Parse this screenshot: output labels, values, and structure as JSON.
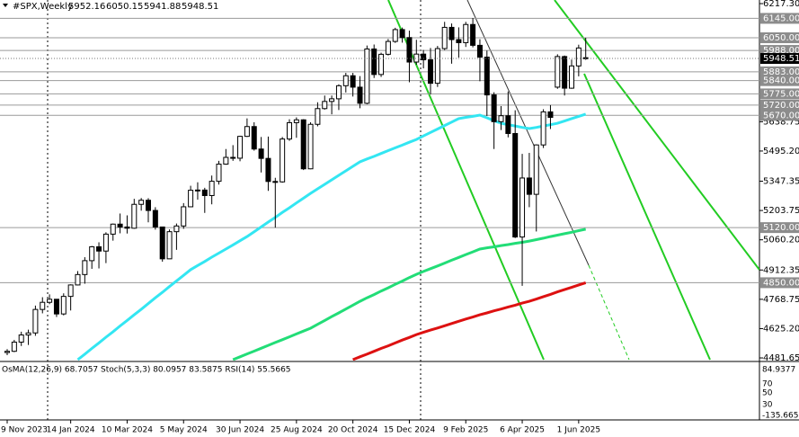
{
  "chart_data": {
    "type": "candlestick",
    "title": "#SPX,Weekly",
    "categories": [
      "9 Nov 2023",
      null,
      null,
      null,
      null,
      null,
      null,
      null,
      null,
      "14 Jan 2024",
      null,
      null,
      null,
      null,
      null,
      null,
      null,
      "10 Mar 2024",
      null,
      null,
      null,
      null,
      null,
      null,
      null,
      "5 May 2024",
      null,
      null,
      null,
      null,
      null,
      null,
      null,
      "30 Jun 2024",
      null,
      null,
      null,
      null,
      null,
      null,
      null,
      "25 Aug 2024",
      null,
      null,
      null,
      null,
      null,
      null,
      null,
      "20 Oct 2024",
      null,
      null,
      null,
      null,
      null,
      null,
      null,
      "15 Dec 2024",
      null,
      null,
      null,
      null,
      null,
      null,
      null,
      "9 Feb 2025",
      null,
      null,
      null,
      null,
      null,
      null,
      null,
      "6 Apr 2025",
      null,
      null,
      null,
      null,
      null,
      null,
      null,
      "1 Jun 2025",
      null
    ],
    "open": [
      4508,
      4514,
      4559,
      4594,
      4604,
      4719,
      4754,
      4769,
      4697,
      4783,
      4839,
      4890,
      4958,
      5026,
      5005,
      5088,
      5137,
      5123,
      5117,
      5234,
      5254,
      5204,
      5123,
      4967,
      5100,
      5128,
      5222,
      5303,
      5304,
      5277,
      5347,
      5431,
      5464,
      5460,
      5567,
      5615,
      5505,
      5459,
      5346,
      5344,
      5554,
      5634,
      5648,
      5408,
      5626,
      5703,
      5738,
      5751,
      5815,
      5864,
      5808,
      5729,
      5995,
      5870,
      5969,
      6032,
      6090,
      6051,
      5931,
      5970,
      5942,
      5827,
      5997,
      6101,
      6041,
      6026,
      6115,
      6013,
      5955,
      5770,
      5639,
      5668,
      5581,
      5074,
      5363,
      5283,
      5525,
      5687,
      5808,
      5958,
      5803,
      5912,
      5952.16
    ],
    "high": [
      4525,
      4570,
      4610,
      4620,
      4738,
      4779,
      4793,
      4770,
      4798,
      4842,
      4907,
      4975,
      5030,
      5048,
      5097,
      5140,
      5189,
      5180,
      5261,
      5265,
      5264,
      5220,
      5125,
      5111,
      5140,
      5240,
      5325,
      5342,
      5315,
      5375,
      5447,
      5505,
      5524,
      5570,
      5655,
      5636,
      5564,
      5566,
      5364,
      5564,
      5651,
      5660,
      5651,
      5636,
      5734,
      5767,
      5767,
      5822,
      5878,
      5878,
      5862,
      6012,
      6017,
      5977,
      6044,
      6099,
      6100,
      6085,
      6040,
      5990,
      6000,
      6010,
      6128,
      6120,
      6101,
      6128,
      6147,
      6043,
      5987,
      5783,
      5715,
      5787,
      5695,
      5481,
      5486,
      5528,
      5700,
      5720,
      5969,
      5963,
      5943,
      6016,
      6050.15
    ],
    "low": [
      4495,
      4510,
      4540,
      4545,
      4590,
      4700,
      4745,
      4682,
      4690,
      4714,
      4837,
      4845,
      4918,
      4920,
      4946,
      5056,
      5092,
      5091,
      5114,
      5203,
      5146,
      5110,
      4953,
      4968,
      5011,
      5114,
      5220,
      5257,
      5192,
      5234,
      5331,
      5428,
      5447,
      5445,
      5564,
      5497,
      5390,
      5300,
      5120,
      5340,
      5545,
      5560,
      5402,
      5406,
      5616,
      5698,
      5675,
      5696,
      5782,
      5762,
      5705,
      5724,
      5853,
      5858,
      5963,
      6025,
      6026,
      5832,
      5918,
      5900,
      5773,
      5809,
      5990,
      5923,
      5953,
      6005,
      6003,
      5837,
      5667,
      5505,
      5598,
      5562,
      5069,
      4835,
      5220,
      5101,
      5510,
      5603,
      5800,
      5767,
      5800,
      5861,
      5941.88
    ],
    "close": [
      4514,
      4559,
      4594,
      4604,
      4719,
      4754,
      4769,
      4697,
      4783,
      4839,
      4890,
      4958,
      5026,
      5005,
      5088,
      5137,
      5123,
      5117,
      5234,
      5254,
      5204,
      5123,
      4967,
      5100,
      5128,
      5222,
      5303,
      5304,
      5277,
      5347,
      5431,
      5464,
      5460,
      5567,
      5615,
      5505,
      5459,
      5346,
      5344,
      5554,
      5634,
      5648,
      5408,
      5626,
      5703,
      5738,
      5751,
      5815,
      5864,
      5808,
      5729,
      5995,
      5870,
      5969,
      6032,
      6090,
      6051,
      5931,
      5970,
      5942,
      5827,
      5997,
      6101,
      6041,
      6026,
      6115,
      6013,
      5955,
      5770,
      5639,
      5668,
      5581,
      5074,
      5363,
      5283,
      5525,
      5687,
      5660,
      5958,
      5803,
      5912,
      6000,
      5948.51
    ],
    "moving_averages": [
      {
        "color": "#33e6f2",
        "values": [
          null,
          null,
          null,
          null,
          null,
          null,
          null,
          null,
          null,
          null,
          4473,
          4500,
          4528,
          4555,
          4583,
          4610,
          4638,
          4665,
          4693,
          4720,
          4748,
          4776,
          4803,
          4831,
          4859,
          4886,
          4914,
          4934,
          4954,
          4975,
          4995,
          5015,
          5035,
          5056,
          5076,
          5100,
          5123,
          5147,
          5170,
          5194,
          5217,
          5241,
          5264,
          5288,
          5310,
          5332,
          5354,
          5376,
          5398,
          5420,
          5442,
          5456,
          5469,
          5483,
          5497,
          5511,
          5524,
          5538,
          5552,
          5569,
          5586,
          5603,
          5620,
          5637,
          5654,
          5660,
          5665,
          5671,
          5658,
          5644,
          5631,
          5624,
          5618,
          5611,
          5605,
          5611,
          5618,
          5624,
          5631,
          5642,
          5654,
          5665,
          5676
        ]
      },
      {
        "color": "#22dd77",
        "values": [
          null,
          null,
          null,
          null,
          null,
          null,
          null,
          null,
          null,
          null,
          null,
          null,
          null,
          null,
          null,
          null,
          null,
          null,
          null,
          null,
          null,
          null,
          null,
          null,
          null,
          null,
          null,
          null,
          null,
          null,
          null,
          null,
          4473,
          4487,
          4501,
          4515,
          4529,
          4543,
          4557,
          4571,
          4585,
          4599,
          4613,
          4627,
          4646,
          4665,
          4684,
          4702,
          4721,
          4740,
          4759,
          4776,
          4792,
          4809,
          4825,
          4842,
          4858,
          4875,
          4891,
          4905,
          4919,
          4932,
          4946,
          4960,
          4974,
          4988,
          5001,
          5015,
          5021,
          5026,
          5032,
          5037,
          5043,
          5048,
          5054,
          5061,
          5068,
          5076,
          5083,
          5090,
          5097,
          5105,
          5112
        ]
      },
      {
        "color": "#dd1111",
        "values": [
          null,
          null,
          null,
          null,
          null,
          null,
          null,
          null,
          null,
          null,
          null,
          null,
          null,
          null,
          null,
          null,
          null,
          null,
          null,
          null,
          null,
          null,
          null,
          null,
          null,
          null,
          null,
          null,
          null,
          null,
          null,
          null,
          null,
          null,
          null,
          null,
          null,
          null,
          null,
          null,
          null,
          null,
          null,
          null,
          null,
          null,
          null,
          null,
          null,
          4473,
          4487,
          4500,
          4514,
          4528,
          4541,
          4555,
          4569,
          4582,
          4596,
          4607,
          4618,
          4628,
          4639,
          4650,
          4661,
          4672,
          4682,
          4693,
          4702,
          4712,
          4721,
          4731,
          4740,
          4750,
          4759,
          4770,
          4782,
          4793,
          4805,
          4816,
          4827,
          4839,
          4850
        ]
      }
    ],
    "ylim": [
      4473,
      6235
    ],
    "yticks": [
      {
        "value": 6217.3,
        "label": "6217.30"
      },
      5638.75,
      {
        "value": 5495.2,
        "label": "5495.20"
      },
      5347.35,
      5203.75,
      {
        "value": 5060.2,
        "label": "5060.20"
      },
      4912.35,
      4768.75,
      {
        "value": 4625.2,
        "label": "4625.20"
      },
      4481.65
    ],
    "levels": [
      {
        "value": 6145,
        "label": "6145.00"
      },
      {
        "value": 6050,
        "label": "6050.00"
      },
      {
        "value": 5988,
        "label": "5988.00"
      },
      {
        "value": 5883,
        "label": "5883.00"
      },
      {
        "value": 5840,
        "label": "5840.00"
      },
      {
        "value": 5775,
        "label": "5775.00"
      },
      {
        "value": 5720,
        "label": "5720.00"
      },
      {
        "value": 5670,
        "label": "5670.00"
      },
      {
        "value": 5120,
        "label": "5120.00"
      },
      {
        "value": 4850,
        "label": "4850.00"
      }
    ],
    "bull_color": "#ffffff",
    "bear_color": "#000000"
  },
  "indicator_panel": {
    "label": "OsMA(12,26,9) 68.7057  Stoch(5,3,3) 80.0957 83.5875  RSI(14) 55.5665",
    "scale_labels": [
      84.9377,
      70,
      50,
      30,
      -135.665
    ]
  }
}
